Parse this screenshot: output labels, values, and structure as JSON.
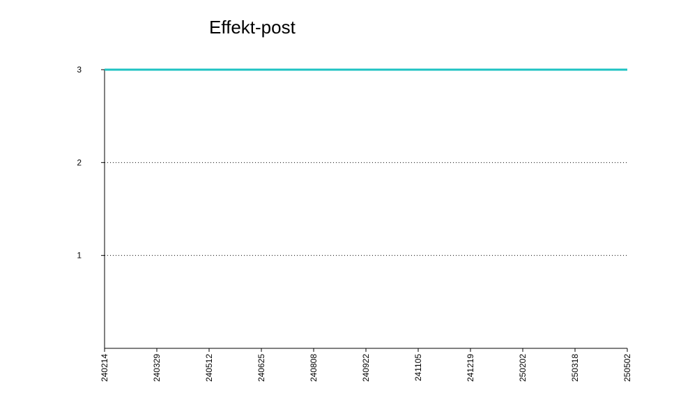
{
  "chart_data": {
    "type": "line",
    "title": "Effekt-post",
    "xlabel": "",
    "ylabel": "",
    "x_ticks": [
      "240214",
      "240329",
      "240512",
      "240625",
      "240808",
      "240922",
      "241105",
      "241219",
      "250202",
      "250318",
      "250502"
    ],
    "y_ticks": [
      "1",
      "2",
      "3"
    ],
    "ylim": [
      0,
      3
    ],
    "grid": "horizontal dotted",
    "series": [
      {
        "color": "#1fc3c3",
        "x": [
          "240214",
          "250502"
        ],
        "values": [
          3,
          3
        ]
      }
    ]
  }
}
